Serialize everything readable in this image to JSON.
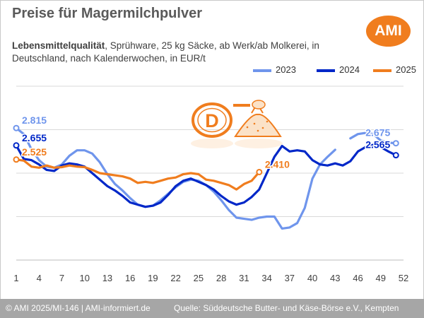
{
  "header": {
    "title": "Preise für Magermilchpulver",
    "subtitle_bold": "Lebensmittelqualität",
    "subtitle_rest": ", Sprühware, 25 kg Säcke, ab Werk/ab Molkerei, in Deutschland, nach Kalenderwochen, in EUR/t",
    "logo_text": "AMI"
  },
  "footer": {
    "left": "© AMI 2025/MI-146 | AMI-informiert.de",
    "right": "Quelle: Süddeutsche Butter- und Käse-Börse e.V., Kempten"
  },
  "decoration": {
    "badge_letter": "D",
    "icon": "powder-heap-icon"
  },
  "chart_data": {
    "type": "line",
    "title": "Preise für Magermilchpulver",
    "xlabel": "",
    "ylabel": "",
    "x_ticks": [
      1,
      4,
      7,
      10,
      13,
      16,
      19,
      22,
      25,
      28,
      31,
      34,
      37,
      40,
      43,
      46,
      49,
      52
    ],
    "xlim": [
      1,
      52
    ],
    "ylim": [
      1600,
      3200
    ],
    "grid": true,
    "legend_position": "top-right",
    "series": [
      {
        "name": "2023",
        "color": "#6f95ec",
        "points": [
          [
            1,
            2815
          ],
          [
            2,
            2760
          ],
          [
            3,
            2620
          ],
          [
            4,
            2520
          ],
          [
            5,
            2460
          ],
          [
            6,
            2450
          ],
          [
            7,
            2480
          ],
          [
            8,
            2560
          ],
          [
            9,
            2610
          ],
          [
            10,
            2610
          ],
          [
            11,
            2580
          ],
          [
            12,
            2500
          ],
          [
            13,
            2390
          ],
          [
            14,
            2300
          ],
          [
            15,
            2240
          ],
          [
            16,
            2170
          ],
          [
            17,
            2110
          ],
          [
            18,
            2090
          ],
          [
            19,
            2100
          ],
          [
            20,
            2150
          ],
          [
            21,
            2210
          ],
          [
            22,
            2270
          ],
          [
            23,
            2320
          ],
          [
            24,
            2340
          ],
          [
            25,
            2330
          ],
          [
            26,
            2290
          ],
          [
            27,
            2230
          ],
          [
            28,
            2150
          ],
          [
            29,
            2060
          ],
          [
            30,
            1990
          ],
          [
            31,
            1980
          ],
          [
            32,
            1970
          ],
          [
            33,
            1990
          ],
          [
            34,
            2000
          ],
          [
            35,
            2000
          ],
          [
            36,
            1890
          ],
          [
            37,
            1900
          ],
          [
            38,
            1940
          ],
          [
            39,
            2080
          ],
          [
            40,
            2350
          ],
          [
            41,
            2480
          ],
          [
            42,
            2550
          ],
          [
            43,
            2615
          ],
          [
            45,
            2720
          ],
          [
            46,
            2760
          ],
          [
            47,
            2770
          ],
          [
            48,
            2760
          ],
          [
            49,
            2700
          ],
          [
            50,
            2680
          ],
          [
            51,
            2675
          ]
        ]
      },
      {
        "name": "2024",
        "color": "#0027c8",
        "points": [
          [
            1,
            2655
          ],
          [
            2,
            2530
          ],
          [
            3,
            2520
          ],
          [
            4,
            2480
          ],
          [
            5,
            2430
          ],
          [
            6,
            2420
          ],
          [
            7,
            2470
          ],
          [
            8,
            2490
          ],
          [
            9,
            2480
          ],
          [
            10,
            2460
          ],
          [
            11,
            2400
          ],
          [
            12,
            2340
          ],
          [
            13,
            2280
          ],
          [
            14,
            2240
          ],
          [
            15,
            2190
          ],
          [
            16,
            2130
          ],
          [
            17,
            2110
          ],
          [
            18,
            2090
          ],
          [
            19,
            2100
          ],
          [
            20,
            2130
          ],
          [
            21,
            2200
          ],
          [
            22,
            2280
          ],
          [
            23,
            2330
          ],
          [
            24,
            2350
          ],
          [
            25,
            2320
          ],
          [
            26,
            2290
          ],
          [
            27,
            2250
          ],
          [
            28,
            2190
          ],
          [
            29,
            2140
          ],
          [
            30,
            2110
          ],
          [
            31,
            2130
          ],
          [
            32,
            2180
          ],
          [
            33,
            2250
          ],
          [
            34,
            2400
          ],
          [
            35,
            2550
          ],
          [
            36,
            2650
          ],
          [
            37,
            2600
          ],
          [
            38,
            2610
          ],
          [
            39,
            2600
          ],
          [
            40,
            2520
          ],
          [
            41,
            2480
          ],
          [
            42,
            2470
          ],
          [
            43,
            2490
          ],
          [
            44,
            2470
          ],
          [
            45,
            2510
          ],
          [
            46,
            2600
          ],
          [
            47,
            2640
          ],
          [
            48,
            2660
          ],
          [
            49,
            2640
          ],
          [
            50,
            2600
          ],
          [
            51,
            2565
          ]
        ]
      },
      {
        "name": "2025",
        "color": "#f07d1e",
        "points": [
          [
            1,
            2525
          ],
          [
            2,
            2515
          ],
          [
            3,
            2460
          ],
          [
            4,
            2450
          ],
          [
            5,
            2470
          ],
          [
            6,
            2450
          ],
          [
            7,
            2455
          ],
          [
            8,
            2470
          ],
          [
            9,
            2460
          ],
          [
            10,
            2455
          ],
          [
            11,
            2430
          ],
          [
            12,
            2400
          ],
          [
            13,
            2390
          ],
          [
            14,
            2380
          ],
          [
            15,
            2370
          ],
          [
            16,
            2350
          ],
          [
            17,
            2310
          ],
          [
            18,
            2320
          ],
          [
            19,
            2310
          ],
          [
            20,
            2330
          ],
          [
            21,
            2350
          ],
          [
            22,
            2360
          ],
          [
            23,
            2390
          ],
          [
            24,
            2400
          ],
          [
            25,
            2390
          ],
          [
            26,
            2340
          ],
          [
            27,
            2330
          ],
          [
            28,
            2310
          ],
          [
            29,
            2290
          ],
          [
            30,
            2250
          ],
          [
            31,
            2300
          ],
          [
            32,
            2330
          ],
          [
            33,
            2410
          ]
        ]
      }
    ],
    "data_labels": [
      {
        "series": "2023",
        "text": "2.815",
        "x": 1,
        "y": 2815,
        "anchor": "right"
      },
      {
        "series": "2024",
        "text": "2.655",
        "x": 1,
        "y": 2655,
        "anchor": "right"
      },
      {
        "series": "2025",
        "text": "2.525",
        "x": 1,
        "y": 2525,
        "anchor": "right"
      },
      {
        "series": "2025",
        "text": "2.410",
        "x": 33,
        "y": 2410,
        "anchor": "right"
      },
      {
        "series": "2023",
        "text": "2.675",
        "x": 51,
        "y": 2675,
        "anchor": "above-left"
      },
      {
        "series": "2024",
        "text": "2.565",
        "x": 51,
        "y": 2565,
        "anchor": "above-left"
      }
    ]
  }
}
